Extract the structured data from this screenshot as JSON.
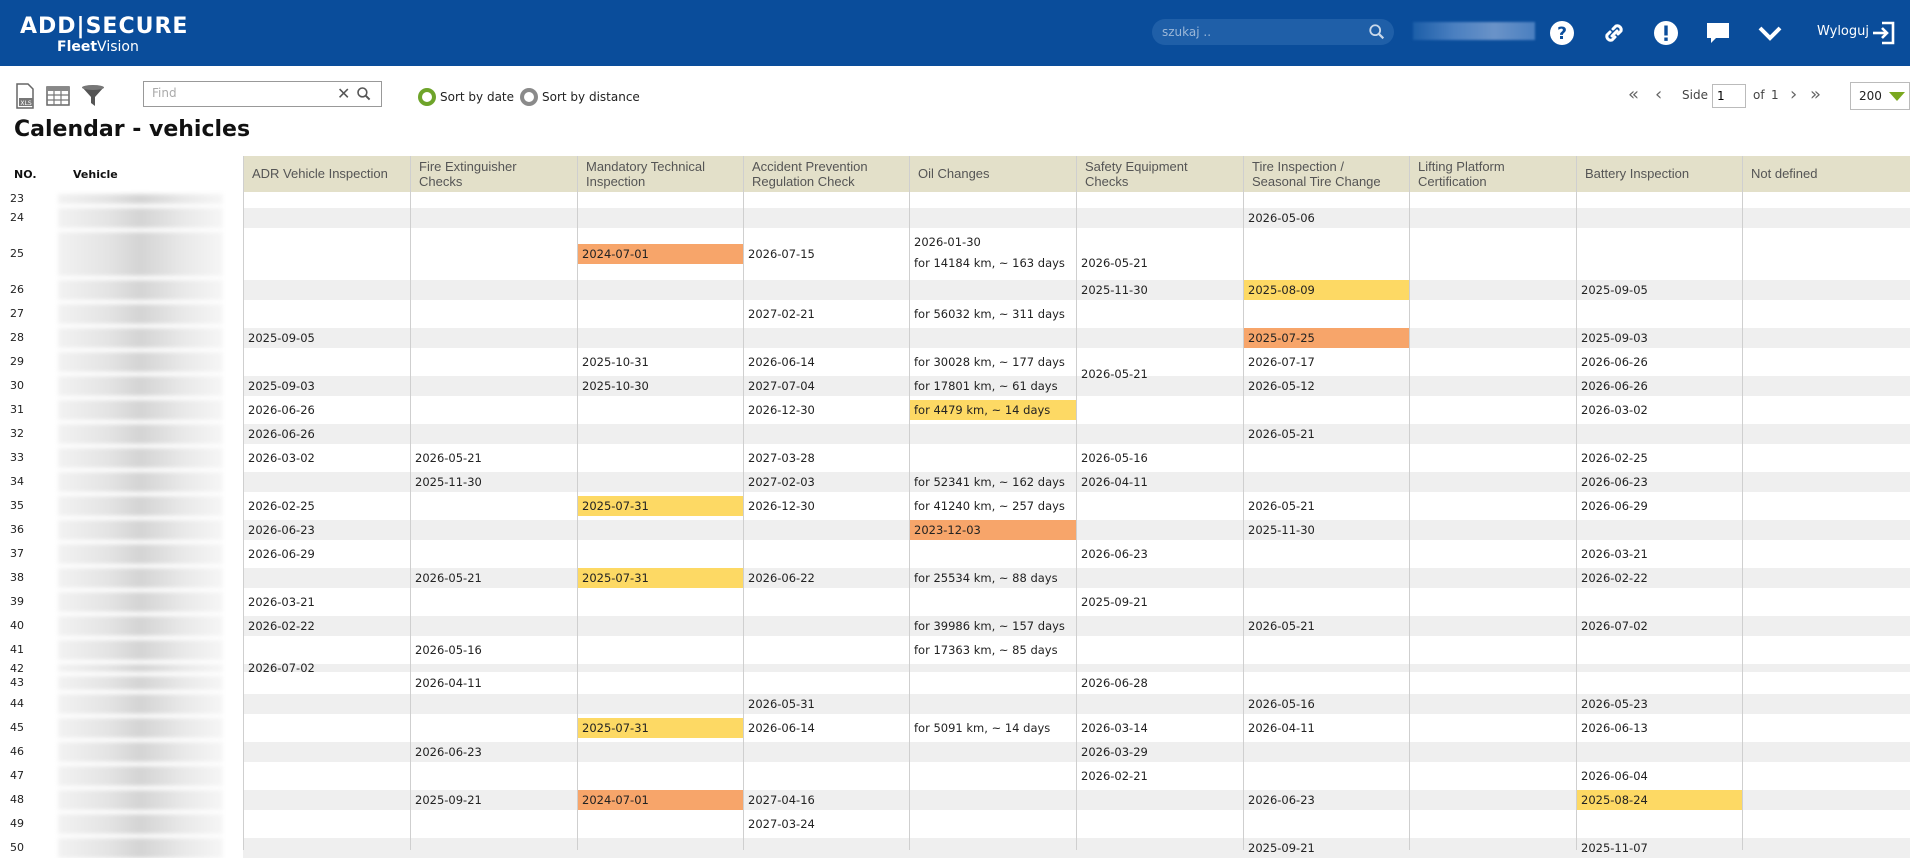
{
  "header": {
    "logo_line1": "ADD|SECURE",
    "logo_line2a": "Fleet",
    "logo_line2b": "Vision",
    "search_placeholder": "szukaj ..",
    "logout_label": "Wyloguj",
    "icons": [
      "help-icon",
      "link-icon",
      "alert-icon",
      "chat-icon",
      "chevron-down-icon",
      "logout-icon"
    ]
  },
  "toolbar": {
    "find_placeholder": "Find",
    "sort_by_date": "Sort by date",
    "sort_by_distance": "Sort by distance",
    "sort_selected": "date",
    "pager_side": "Side",
    "pager_page": "1",
    "pager_of": "of",
    "pager_total": "1",
    "per_page": "200"
  },
  "page_title": "Calendar - vehicles",
  "columns": {
    "no": "NO.",
    "vehicle": "Vehicle",
    "c1": [
      "ADR Vehicle Inspection"
    ],
    "c2": [
      "Fire Extinguisher",
      "Checks"
    ],
    "c3": [
      "Mandatory Technical",
      "Inspection"
    ],
    "c4": [
      "Accident Prevention",
      "Regulation Check"
    ],
    "c5": [
      "Oil Changes"
    ],
    "c6": [
      "Safety Equipment",
      "Checks"
    ],
    "c7": [
      "Tire Inspection /",
      "Seasonal Tire Change"
    ],
    "c8": [
      "Lifting Platform",
      "Certification"
    ],
    "c9": [
      "Battery Inspection"
    ],
    "c10": [
      "Not defined"
    ]
  },
  "colors": {
    "overdue": "#f7a56a",
    "due_soon": "#fdd964",
    "header_bg": "#0a4d9b",
    "column_header_bg": "#e3e0c9"
  },
  "row_numbers": [
    "23",
    "24",
    "25",
    "26",
    "27",
    "28",
    "29",
    "30",
    "31",
    "32",
    "33",
    "34",
    "35",
    "36",
    "37",
    "38",
    "39",
    "40",
    "41",
    "42",
    "43",
    "44",
    "45",
    "46",
    "47",
    "48",
    "49",
    "50"
  ],
  "cells": [
    {
      "r": "24",
      "c": 7,
      "t": "2026-05-06"
    },
    {
      "r": "25",
      "c": 3,
      "t": "2024-07-01",
      "s": "orange"
    },
    {
      "r": "25",
      "c": 4,
      "t": "2026-07-15"
    },
    {
      "r": "25",
      "c": 5,
      "t": "2026-01-30",
      "line": 0
    },
    {
      "r": "25",
      "c": 5,
      "t": "for 14184 km, ~ 163 days",
      "line": 1
    },
    {
      "r": "25",
      "c": 6,
      "t": "2026-05-21",
      "line": 1
    },
    {
      "r": "26",
      "c": 6,
      "t": "2025-11-30"
    },
    {
      "r": "26",
      "c": 7,
      "t": "2025-08-09",
      "s": "yellow"
    },
    {
      "r": "26",
      "c": 9,
      "t": "2025-09-05"
    },
    {
      "r": "27",
      "c": 4,
      "t": "2027-02-21"
    },
    {
      "r": "27",
      "c": 5,
      "t": "for 56032 km, ~ 311 days"
    },
    {
      "r": "28",
      "c": 1,
      "t": "2025-09-05"
    },
    {
      "r": "28",
      "c": 7,
      "t": "2025-07-25",
      "s": "orange"
    },
    {
      "r": "28",
      "c": 9,
      "t": "2025-09-03"
    },
    {
      "r": "29",
      "c": 3,
      "t": "2025-10-31"
    },
    {
      "r": "29",
      "c": 4,
      "t": "2026-06-14"
    },
    {
      "r": "29",
      "c": 5,
      "t": "for 30028 km, ~ 177 days"
    },
    {
      "r": "29",
      "c": 7,
      "t": "2026-07-17"
    },
    {
      "r": "29",
      "c": 9,
      "t": "2026-06-26"
    },
    {
      "r": "30",
      "c": 1,
      "t": "2025-09-03"
    },
    {
      "r": "30",
      "c": 3,
      "t": "2025-10-30"
    },
    {
      "r": "30",
      "c": 4,
      "t": "2027-07-04"
    },
    {
      "r": "30",
      "c": 5,
      "t": "for 17801 km, ~ 61 days"
    },
    {
      "r": "30",
      "c": 6,
      "t": "2026-05-21",
      "up": true
    },
    {
      "r": "30",
      "c": 7,
      "t": "2026-05-12"
    },
    {
      "r": "30",
      "c": 9,
      "t": "2026-06-26"
    },
    {
      "r": "31",
      "c": 1,
      "t": "2026-06-26"
    },
    {
      "r": "31",
      "c": 4,
      "t": "2026-12-30"
    },
    {
      "r": "31",
      "c": 5,
      "t": "for 4479 km, ~ 14 days",
      "s": "yellow"
    },
    {
      "r": "31",
      "c": 9,
      "t": "2026-03-02"
    },
    {
      "r": "32",
      "c": 1,
      "t": "2026-06-26"
    },
    {
      "r": "32",
      "c": 7,
      "t": "2026-05-21"
    },
    {
      "r": "33",
      "c": 1,
      "t": "2026-03-02"
    },
    {
      "r": "33",
      "c": 2,
      "t": "2026-05-21"
    },
    {
      "r": "33",
      "c": 4,
      "t": "2027-03-28"
    },
    {
      "r": "33",
      "c": 6,
      "t": "2026-05-16"
    },
    {
      "r": "33",
      "c": 9,
      "t": "2026-02-25"
    },
    {
      "r": "34",
      "c": 2,
      "t": "2025-11-30"
    },
    {
      "r": "34",
      "c": 4,
      "t": "2027-02-03"
    },
    {
      "r": "34",
      "c": 5,
      "t": "for 52341 km, ~ 162 days"
    },
    {
      "r": "34",
      "c": 6,
      "t": "2026-04-11"
    },
    {
      "r": "34",
      "c": 9,
      "t": "2026-06-23"
    },
    {
      "r": "35",
      "c": 1,
      "t": "2026-02-25"
    },
    {
      "r": "35",
      "c": 3,
      "t": "2025-07-31",
      "s": "yellow"
    },
    {
      "r": "35",
      "c": 4,
      "t": "2026-12-30"
    },
    {
      "r": "35",
      "c": 5,
      "t": "for 41240 km, ~ 257 days"
    },
    {
      "r": "35",
      "c": 7,
      "t": "2026-05-21"
    },
    {
      "r": "35",
      "c": 9,
      "t": "2026-06-29"
    },
    {
      "r": "36",
      "c": 1,
      "t": "2026-06-23"
    },
    {
      "r": "36",
      "c": 5,
      "t": "2023-12-03",
      "s": "orange"
    },
    {
      "r": "36",
      "c": 7,
      "t": "2025-11-30"
    },
    {
      "r": "37",
      "c": 1,
      "t": "2026-06-29"
    },
    {
      "r": "37",
      "c": 6,
      "t": "2026-06-23"
    },
    {
      "r": "37",
      "c": 9,
      "t": "2026-03-21"
    },
    {
      "r": "38",
      "c": 2,
      "t": "2026-05-21"
    },
    {
      "r": "38",
      "c": 3,
      "t": "2025-07-31",
      "s": "yellow"
    },
    {
      "r": "38",
      "c": 4,
      "t": "2026-06-22"
    },
    {
      "r": "38",
      "c": 5,
      "t": "for 25534 km, ~ 88 days"
    },
    {
      "r": "38",
      "c": 9,
      "t": "2026-02-22"
    },
    {
      "r": "39",
      "c": 1,
      "t": "2026-03-21"
    },
    {
      "r": "39",
      "c": 6,
      "t": "2025-09-21"
    },
    {
      "r": "40",
      "c": 1,
      "t": "2026-02-22"
    },
    {
      "r": "40",
      "c": 5,
      "t": "for 39986 km, ~ 157 days"
    },
    {
      "r": "40",
      "c": 7,
      "t": "2026-05-21"
    },
    {
      "r": "40",
      "c": 9,
      "t": "2026-07-02"
    },
    {
      "r": "41",
      "c": 2,
      "t": "2026-05-16"
    },
    {
      "r": "41",
      "c": 5,
      "t": "for 17363 km, ~ 85 days"
    },
    {
      "r": "42",
      "c": 1,
      "t": "2026-07-02"
    },
    {
      "r": "43",
      "c": 2,
      "t": "2026-04-11"
    },
    {
      "r": "43",
      "c": 6,
      "t": "2026-06-28"
    },
    {
      "r": "44",
      "c": 4,
      "t": "2026-05-31"
    },
    {
      "r": "44",
      "c": 7,
      "t": "2026-05-16"
    },
    {
      "r": "44",
      "c": 9,
      "t": "2026-05-23"
    },
    {
      "r": "45",
      "c": 3,
      "t": "2025-07-31",
      "s": "yellow"
    },
    {
      "r": "45",
      "c": 4,
      "t": "2026-06-14"
    },
    {
      "r": "45",
      "c": 5,
      "t": "for 5091 km, ~ 14 days"
    },
    {
      "r": "45",
      "c": 6,
      "t": "2026-03-14"
    },
    {
      "r": "45",
      "c": 7,
      "t": "2026-04-11"
    },
    {
      "r": "45",
      "c": 9,
      "t": "2026-06-13"
    },
    {
      "r": "46",
      "c": 2,
      "t": "2026-06-23"
    },
    {
      "r": "46",
      "c": 6,
      "t": "2026-03-29"
    },
    {
      "r": "47",
      "c": 6,
      "t": "2026-02-21"
    },
    {
      "r": "47",
      "c": 9,
      "t": "2026-06-04"
    },
    {
      "r": "48",
      "c": 2,
      "t": "2025-09-21"
    },
    {
      "r": "48",
      "c": 3,
      "t": "2024-07-01",
      "s": "orange"
    },
    {
      "r": "48",
      "c": 4,
      "t": "2027-04-16"
    },
    {
      "r": "48",
      "c": 7,
      "t": "2026-06-23"
    },
    {
      "r": "48",
      "c": 9,
      "t": "2025-08-24",
      "s": "yellow"
    },
    {
      "r": "49",
      "c": 4,
      "t": "2027-03-24"
    },
    {
      "r": "50",
      "c": 7,
      "t": "2025-09-21"
    },
    {
      "r": "50",
      "c": 9,
      "t": "2025-11-07"
    }
  ]
}
